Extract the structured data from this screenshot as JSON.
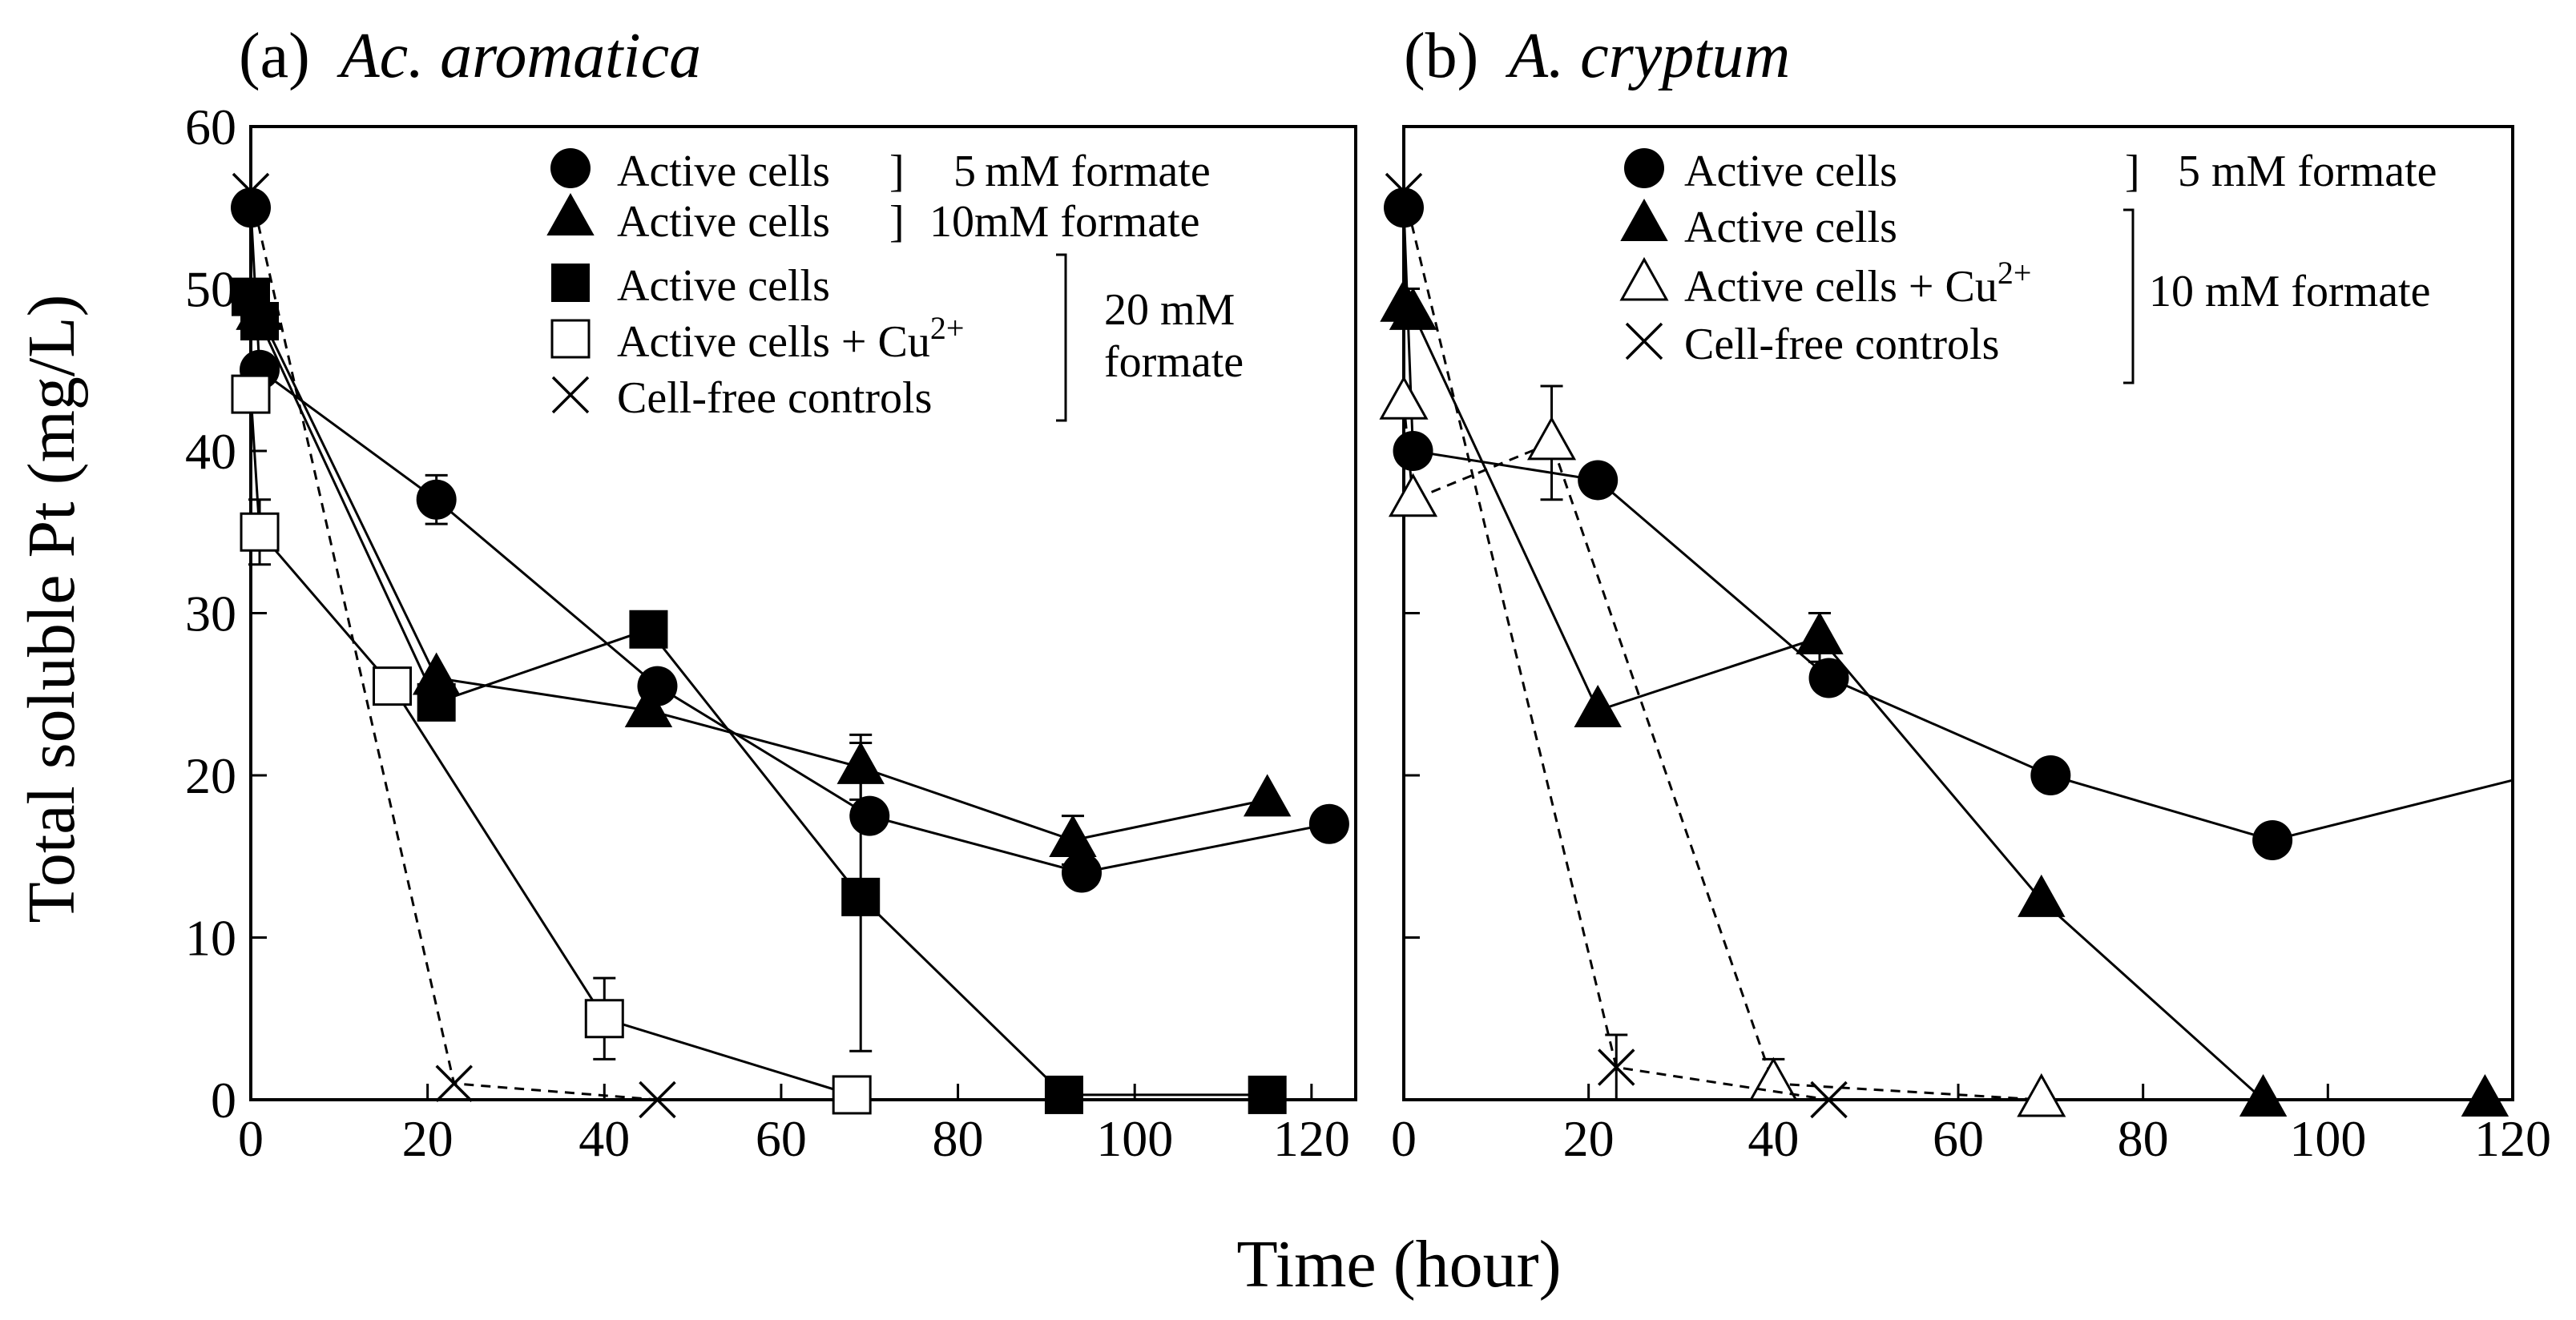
{
  "figure": {
    "ylabel": "Total soluble Pt  (mg/L)",
    "xlabel": "Time (hour)"
  },
  "chart_data": [
    {
      "type": "scatter",
      "panel": "a",
      "title_prefix": "(a)",
      "title_italic": "Ac. aromatica",
      "xlim": [
        0,
        125
      ],
      "ylim": [
        0,
        60
      ],
      "xticks": [
        0,
        20,
        40,
        60,
        80,
        100,
        120
      ],
      "yticks": [
        0,
        10,
        20,
        30,
        40,
        50,
        60
      ],
      "legend_position": "top-right",
      "legend": [
        {
          "marker": "circle",
          "label": "Active cells",
          "bracket": "]",
          "group": "5 mM  formate"
        },
        {
          "marker": "triangle",
          "label": "Active cells",
          "bracket": "]",
          "group": "10mM  formate"
        },
        {
          "marker": "square",
          "label": "Active cells",
          "label_sup": ""
        },
        {
          "marker": "open-square",
          "label": "Active cells + Cu",
          "label_sup": "2+"
        },
        {
          "marker": "cross",
          "label": "Cell-free controls",
          "label_sup": ""
        }
      ],
      "legend_group_20": [
        "20 mM",
        "formate"
      ],
      "series": [
        {
          "marker": "circle",
          "line": "solid",
          "points": [
            {
              "x": 0,
              "y": 55
            },
            {
              "x": 1,
              "y": 45
            },
            {
              "x": 21,
              "y": 37,
              "err": 1.5
            },
            {
              "x": 46,
              "y": 25.5
            },
            {
              "x": 70,
              "y": 17.5
            },
            {
              "x": 94,
              "y": 14
            },
            {
              "x": 122,
              "y": 17
            }
          ]
        },
        {
          "marker": "triangle",
          "line": "solid",
          "points": [
            {
              "x": 1,
              "y": 48.5
            },
            {
              "x": 21,
              "y": 26
            },
            {
              "x": 45,
              "y": 24
            },
            {
              "x": 69,
              "y": 20.5,
              "err": 2
            },
            {
              "x": 93,
              "y": 16,
              "err": 1.5
            },
            {
              "x": 115,
              "y": 18.5
            }
          ]
        },
        {
          "marker": "square",
          "line": "solid",
          "points": [
            {
              "x": 0,
              "y": 49.5
            },
            {
              "x": 1,
              "y": 48
            },
            {
              "x": 21,
              "y": 24.5
            },
            {
              "x": 45,
              "y": 29
            },
            {
              "x": 69,
              "y": 12.5,
              "err": 9.5
            },
            {
              "x": 92,
              "y": 0.3
            },
            {
              "x": 115,
              "y": 0.3
            }
          ]
        },
        {
          "marker": "open-square",
          "line": "solid",
          "points": [
            {
              "x": 0,
              "y": 43.5
            },
            {
              "x": 1,
              "y": 35,
              "err": 2
            },
            {
              "x": 16,
              "y": 25.5
            },
            {
              "x": 40,
              "y": 5,
              "err": 2.5
            },
            {
              "x": 68,
              "y": 0.3
            }
          ]
        },
        {
          "marker": "cross",
          "line": "dashed",
          "points": [
            {
              "x": 0,
              "y": 56
            },
            {
              "x": 23,
              "y": 1
            },
            {
              "x": 46,
              "y": 0
            }
          ]
        }
      ]
    },
    {
      "type": "scatter",
      "panel": "b",
      "title_prefix": "(b)",
      "title_italic": "A. cryptum",
      "xlim": [
        0,
        120
      ],
      "ylim": [
        0,
        60
      ],
      "xticks": [
        0,
        20,
        40,
        60,
        80,
        100,
        120
      ],
      "yticks": [
        0,
        10,
        20,
        30,
        40,
        50,
        60
      ],
      "legend_position": "top-right",
      "legend": [
        {
          "marker": "circle",
          "label": "Active cells",
          "label_sup": ""
        },
        {
          "marker": "triangle",
          "label": "Active cells",
          "label_sup": ""
        },
        {
          "marker": "open-triangle",
          "label": "Active cells + Cu",
          "label_sup": "2+"
        },
        {
          "marker": "cross",
          "label": "Cell-free controls",
          "label_sup": ""
        }
      ],
      "legend_group_5": "5 mM formate",
      "legend_group_10": "10 mM formate",
      "series": [
        {
          "marker": "circle",
          "line": "solid",
          "points": [
            {
              "x": 0,
              "y": 55
            },
            {
              "x": 1,
              "y": 40
            },
            {
              "x": 21,
              "y": 38.2
            },
            {
              "x": 46,
              "y": 26
            },
            {
              "x": 70,
              "y": 20
            },
            {
              "x": 94,
              "y": 16
            },
            {
              "x": 120,
              "y": 19.7,
              "nomarker": true
            }
          ]
        },
        {
          "marker": "triangle",
          "line": "solid",
          "points": [
            {
              "x": 0,
              "y": 49
            },
            {
              "x": 1,
              "y": 48.5
            },
            {
              "x": 21,
              "y": 24
            },
            {
              "x": 45,
              "y": 28.5,
              "err": 1.5
            },
            {
              "x": 69,
              "y": 12.3
            },
            {
              "x": 93,
              "y": 0
            },
            {
              "x": 117,
              "y": 0
            }
          ]
        },
        {
          "marker": "open-triangle",
          "line": "dashed",
          "points": [
            {
              "x": 0,
              "y": 43
            },
            {
              "x": 1,
              "y": 37
            },
            {
              "x": 16,
              "y": 40.5,
              "err": 3.5
            },
            {
              "x": 40,
              "y": 1,
              "err": 1.5
            },
            {
              "x": 69,
              "y": 0
            }
          ]
        },
        {
          "marker": "cross",
          "line": "dashed",
          "points": [
            {
              "x": 0,
              "y": 56
            },
            {
              "x": 23,
              "y": 2,
              "err": 2
            },
            {
              "x": 46,
              "y": 0
            }
          ]
        }
      ]
    }
  ]
}
